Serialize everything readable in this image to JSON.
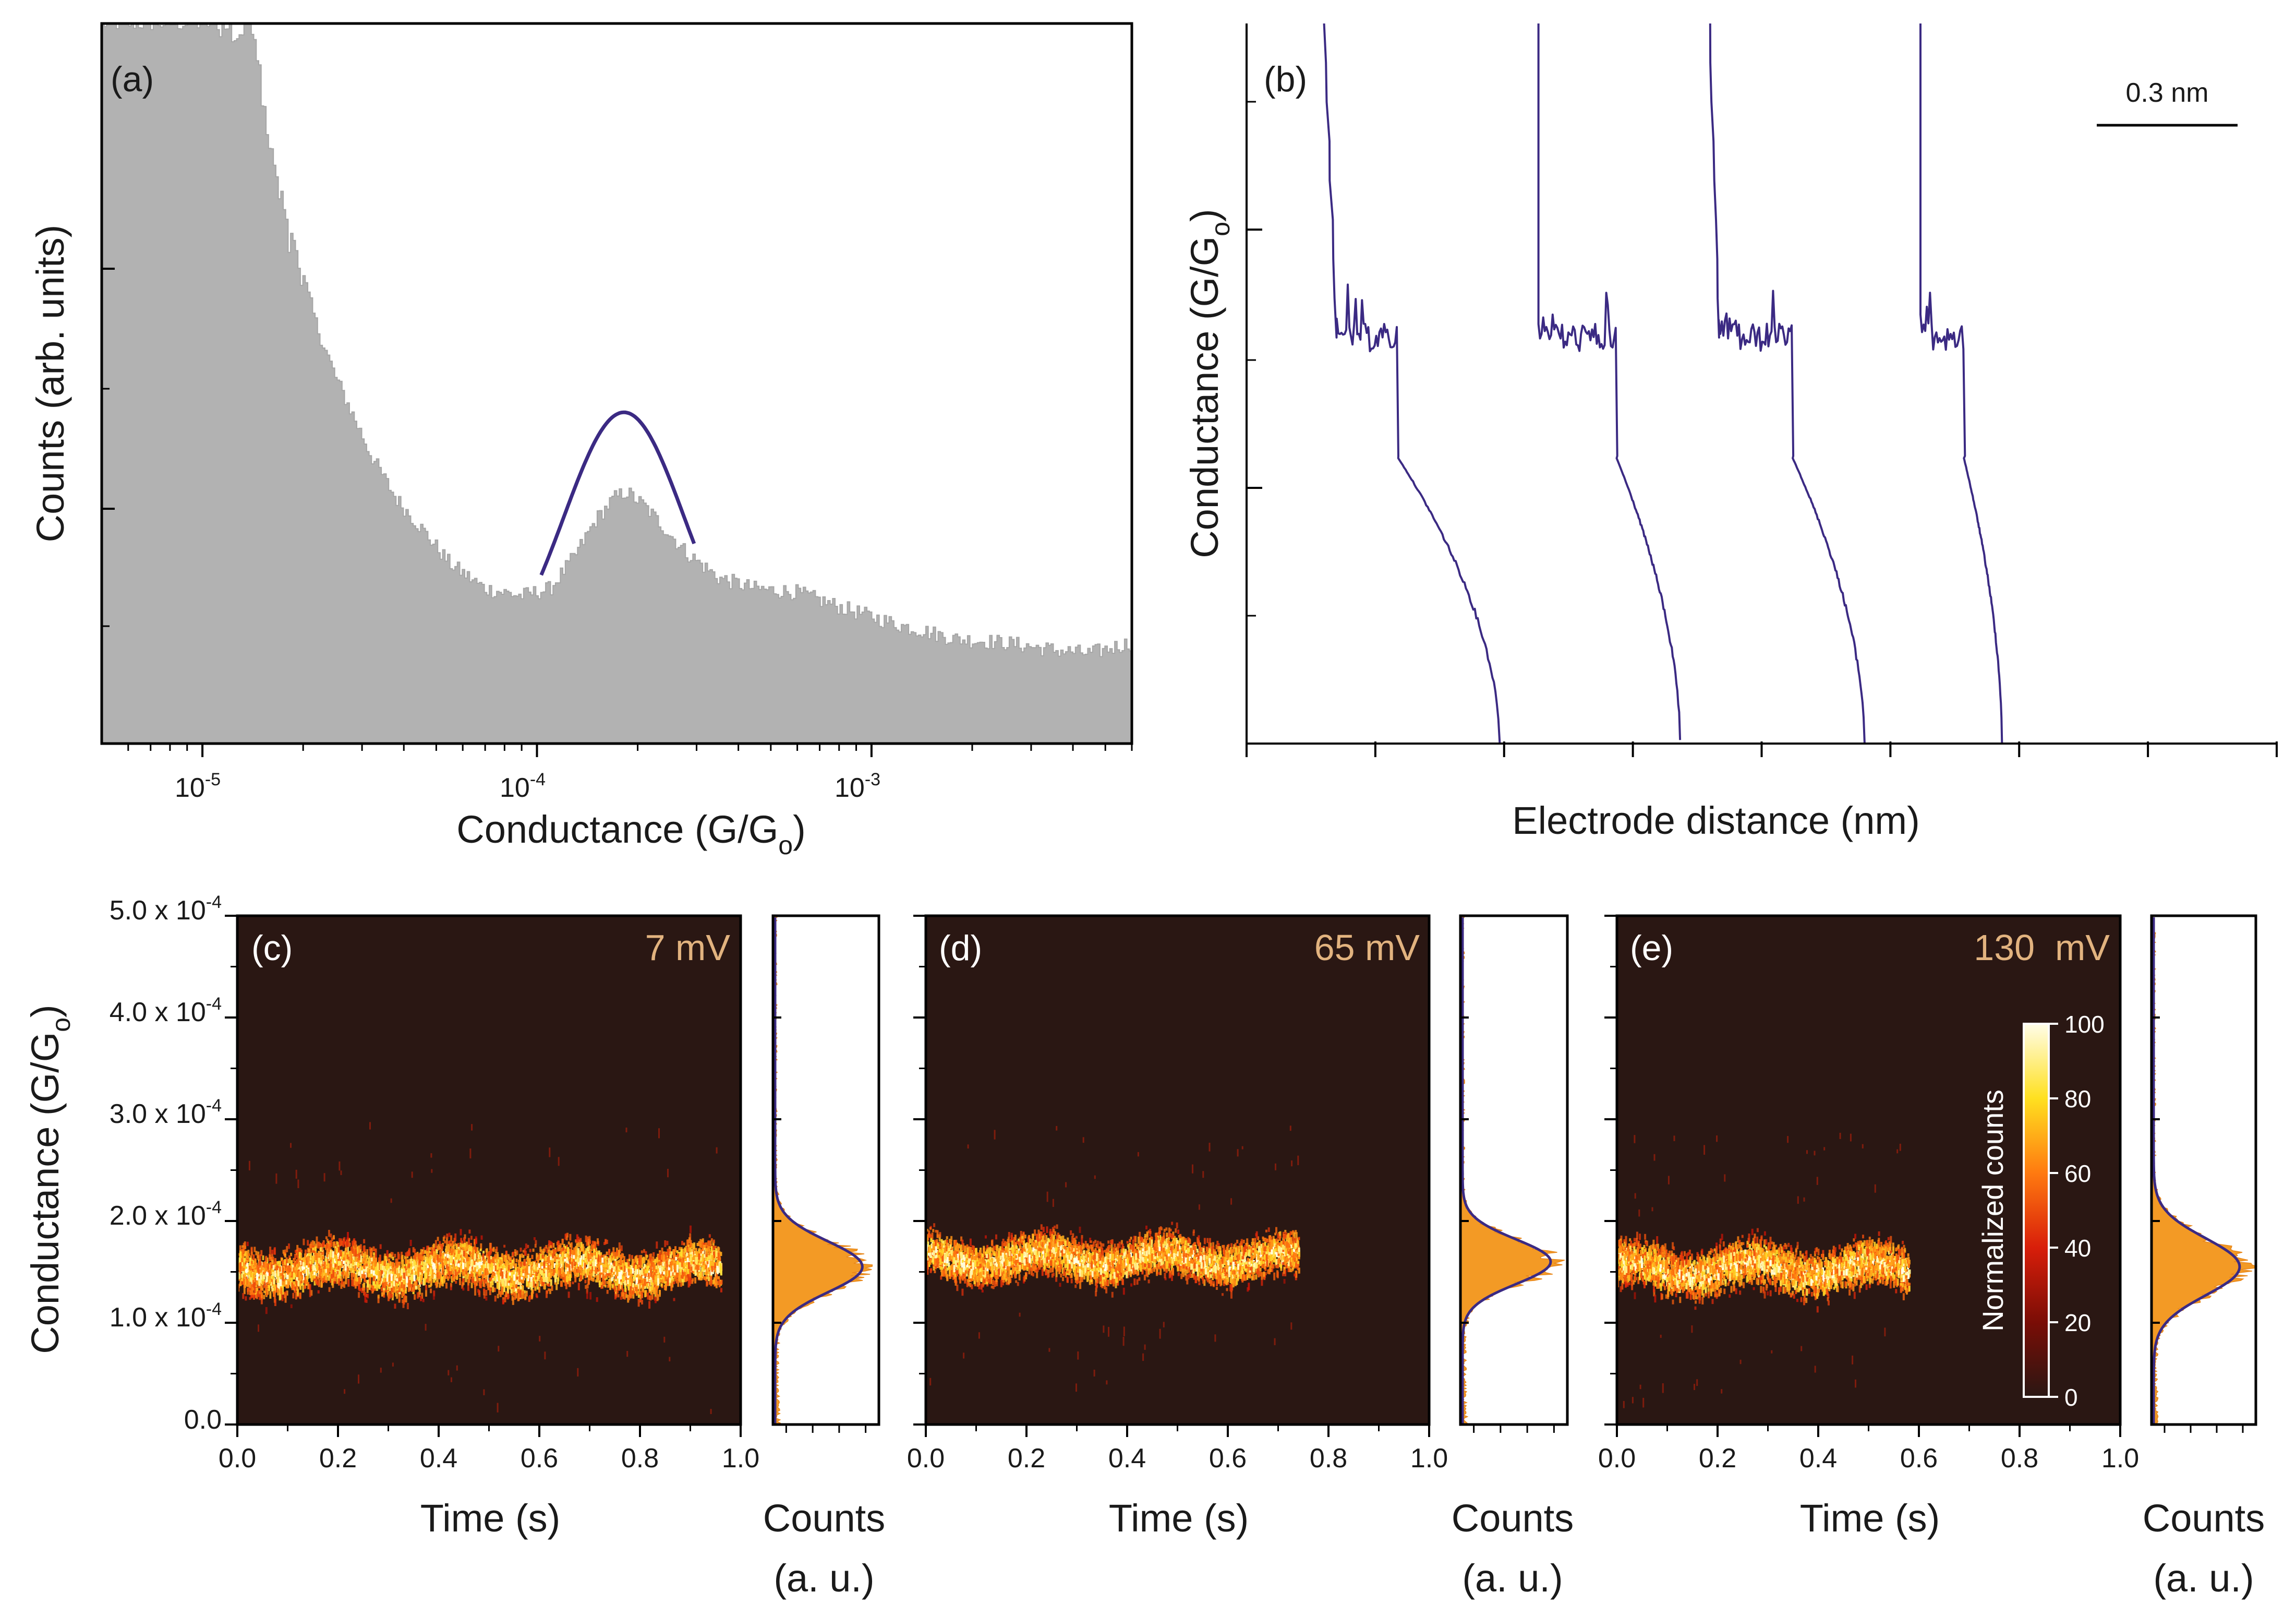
{
  "colors": {
    "histogram_fill": "#b2b2b2",
    "fit_line": "#3b2a83",
    "trace_line": "#3b2a83",
    "map_background": "#2a1713",
    "voltage_label": "#e2b37f",
    "hist_orange": "#f39a25"
  },
  "chart_data": [
    {
      "id": "a",
      "type": "bar",
      "panel_label": "(a)",
      "xlabel": "Conductance (G/G",
      "xlabel_sub": "o",
      "xlabel_close": ")",
      "ylabel": "Counts (arb. units)",
      "xscale": "log",
      "xlim": [
        5e-06,
        0.006
      ],
      "ylim": [
        0,
        1
      ],
      "x_ticks": [
        {
          "base": "10",
          "exp": "-5",
          "value": 1e-05
        },
        {
          "base": "10",
          "exp": "-4",
          "value": 0.0001
        },
        {
          "base": "10",
          "exp": "-3",
          "value": 0.001
        }
      ],
      "histogram_outline": [
        [
          5e-06,
          1.0
        ],
        [
          1.4e-05,
          1.0
        ],
        [
          1.45e-05,
          0.97
        ],
        [
          1.5e-05,
          0.9
        ],
        [
          1.6e-05,
          0.82
        ],
        [
          1.7e-05,
          0.76
        ],
        [
          1.8e-05,
          0.71
        ],
        [
          2e-05,
          0.65
        ],
        [
          2.2e-05,
          0.58
        ],
        [
          2.5e-05,
          0.51
        ],
        [
          2.8e-05,
          0.46
        ],
        [
          3.2e-05,
          0.4
        ],
        [
          3.8e-05,
          0.34
        ],
        [
          4.5e-05,
          0.3
        ],
        [
          5.5e-05,
          0.25
        ],
        [
          7e-05,
          0.215
        ],
        [
          9e-05,
          0.205
        ],
        [
          0.00011,
          0.215
        ],
        [
          0.00013,
          0.26
        ],
        [
          0.00015,
          0.31
        ],
        [
          0.00017,
          0.34
        ],
        [
          0.000185,
          0.35
        ],
        [
          0.00021,
          0.33
        ],
        [
          0.00024,
          0.3
        ],
        [
          0.00028,
          0.265
        ],
        [
          0.00035,
          0.23
        ],
        [
          0.00045,
          0.215
        ],
        [
          0.0006,
          0.21
        ],
        [
          0.0008,
          0.19
        ],
        [
          0.0012,
          0.165
        ],
        [
          0.0018,
          0.145
        ],
        [
          0.0025,
          0.14
        ],
        [
          0.0035,
          0.13
        ],
        [
          0.0045,
          0.125
        ],
        [
          0.006,
          0.14
        ]
      ],
      "gaussian_fit": {
        "center": 0.000182,
        "sigma_decades": 0.18,
        "amplitude": 0.37,
        "offset": 0.09,
        "x_from": 0.000103,
        "x_to": 0.000295
      }
    },
    {
      "id": "b",
      "type": "line",
      "panel_label": "(b)",
      "xlabel": "Electrode distance (nm)",
      "ylabel": "Conductance (G/G",
      "ylabel_sub": "o",
      "ylabel_close": ")",
      "scale_bar_label": "0.3 nm",
      "scale_bar_nm": 0.3,
      "xlim_nm": [
        0,
        2.4
      ],
      "yscale": "log",
      "ylim": [
        1e-06,
        0.01
      ],
      "plateau_level": 0.00018,
      "traces": [
        {
          "x_break": 0.18,
          "x_plateau_start": 0.21,
          "x_plateau_end": 0.35,
          "x_end": 0.59
        },
        {
          "x_break": 0.68,
          "x_plateau_start": 0.68,
          "x_plateau_end": 0.86,
          "x_end": 1.01
        },
        {
          "x_break": 1.08,
          "x_plateau_start": 1.1,
          "x_plateau_end": 1.27,
          "x_end": 1.44
        },
        {
          "x_break": 1.57,
          "x_plateau_start": 1.57,
          "x_plateau_end": 1.67,
          "x_end": 1.76
        }
      ]
    },
    {
      "id": "c",
      "type": "heatmap",
      "panel_label": "(c)",
      "voltage": "7 mV",
      "xlabel": "Time (s)",
      "xlim": [
        0,
        1.0
      ],
      "ylim": [
        0,
        0.0005
      ],
      "x_ticks": [
        "0.0",
        "0.2",
        "0.4",
        "0.6",
        "0.8",
        "1.0"
      ],
      "trace_end_s": 0.96,
      "center": 0.000155,
      "spread": 2.2e-05,
      "hist_xlabel": "Counts",
      "hist_xlabel2": "(a. u.)",
      "hist_center": 0.000155,
      "hist_sigma": 2.5e-05
    },
    {
      "id": "d",
      "type": "heatmap",
      "panel_label": "(d)",
      "voltage": "65 mV",
      "xlabel": "Time (s)",
      "xlim": [
        0,
        1.0
      ],
      "ylim": [
        0,
        0.0005
      ],
      "x_ticks": [
        "0.0",
        "0.2",
        "0.4",
        "0.6",
        "0.8",
        "1.0"
      ],
      "trace_end_s": 0.74,
      "center": 0.000165,
      "spread": 2e-05,
      "hist_xlabel": "Counts",
      "hist_xlabel2": "(a. u.)",
      "hist_center": 0.00016,
      "hist_sigma": 2.2e-05
    },
    {
      "id": "e",
      "type": "heatmap",
      "panel_label": "(e)",
      "voltage": "130  mV",
      "xlabel": "Time (s)",
      "xlim": [
        0,
        1.0
      ],
      "ylim": [
        0,
        0.0005
      ],
      "x_ticks": [
        "0.0",
        "0.2",
        "0.4",
        "0.6",
        "0.8",
        "1.0"
      ],
      "trace_end_s": 0.58,
      "center": 0.000155,
      "spread": 2.2e-05,
      "hist_xlabel": "Counts",
      "hist_xlabel2": "(a. u.)",
      "hist_center": 0.000155,
      "hist_sigma": 2.8e-05,
      "colorbar": {
        "label": "Normalized counts",
        "ticks": [
          "0",
          "20",
          "40",
          "60",
          "80",
          "100"
        ],
        "range": [
          0,
          100
        ]
      }
    }
  ],
  "shared_y_axis_cde": {
    "label": "Conductance (G/G",
    "label_sub": "o",
    "label_close": ")",
    "ticks": [
      {
        "mant": "0.0",
        "exp": "",
        "value": 0
      },
      {
        "mant": "1.0 x 10",
        "exp": "-4",
        "value": 0.0001
      },
      {
        "mant": "2.0 x 10",
        "exp": "-4",
        "value": 0.0002
      },
      {
        "mant": "3.0 x 10",
        "exp": "-4",
        "value": 0.0003
      },
      {
        "mant": "4.0 x 10",
        "exp": "-4",
        "value": 0.0004
      },
      {
        "mant": "5.0 x 10",
        "exp": "-4",
        "value": 0.0005
      }
    ]
  }
}
